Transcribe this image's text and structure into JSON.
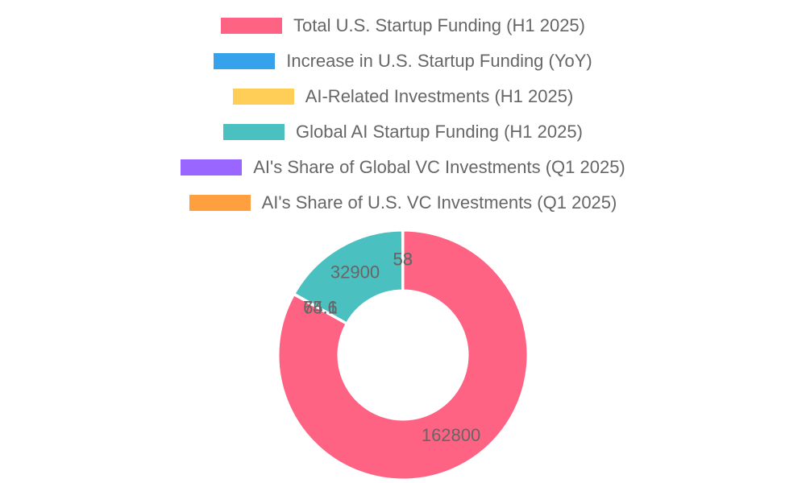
{
  "chart_data": {
    "type": "pie",
    "variant": "doughnut",
    "title": "",
    "legend_position": "top",
    "categories": [
      "Total U.S. Startup Funding (H1 2025)",
      "Increase in U.S. Startup Funding (YoY)",
      "AI-Related Investments (H1 2025)",
      "Global AI Startup Funding (H1 2025)",
      "AI's Share of Global VC Investments (Q1 2025)",
      "AI's Share of U.S. VC Investments (Q1 2025)"
    ],
    "values": [
      162800,
      75.6,
      64.1,
      32900,
      53,
      58
    ],
    "colors": [
      "#ff6384",
      "#36a2eb",
      "#ffce56",
      "#4bc0c0",
      "#9966ff",
      "#ff9f40"
    ],
    "value_labels": [
      "162800",
      "75.6",
      "64.1",
      "32900",
      "53",
      "58"
    ]
  }
}
